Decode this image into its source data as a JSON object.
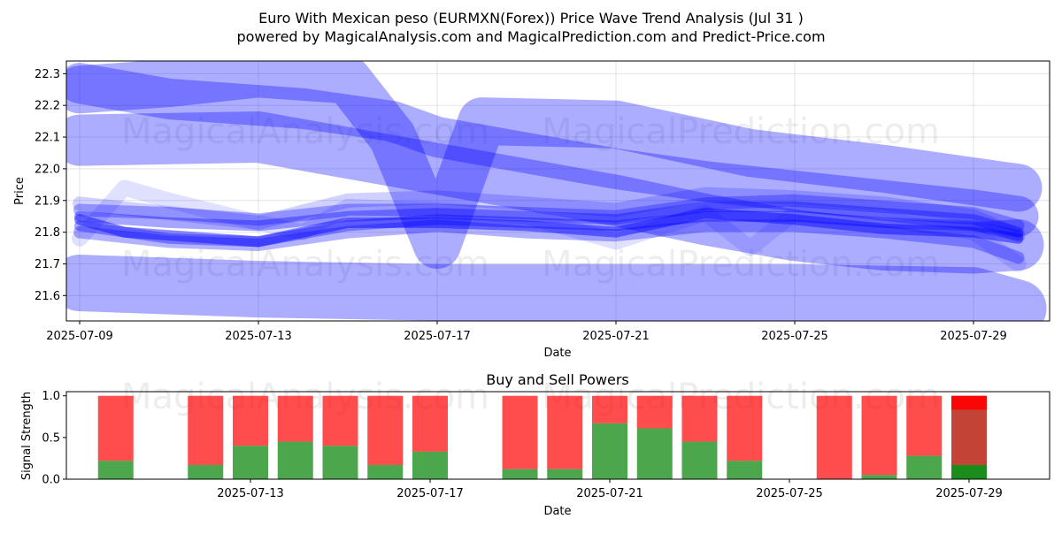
{
  "title_line1": "Euro With Mexican peso (EURMXN(Forex)) Price Wave Trend Analysis (Jul 31 )",
  "title_line2": "powered by MagicalAnalysis.com and MagicalPrediction.com and Predict-Price.com",
  "watermark_left": "MagicalAnalysis.com",
  "watermark_right": "MagicalPrediction.com",
  "colors": {
    "wave": "#0000ff",
    "buy": "#008000",
    "sell": "#ff0000",
    "highlight_sell": "#ff0000",
    "highlight_mid": "#c0392b"
  },
  "chart_data": [
    {
      "type": "line",
      "name": "price-wave-chart",
      "xlabel": "Date",
      "ylabel": "Price",
      "xlim": [
        "2025-07-09",
        "2025-07-31"
      ],
      "ylim": [
        21.52,
        22.34
      ],
      "x_ticks": [
        "2025-07-09",
        "2025-07-13",
        "2025-07-17",
        "2025-07-21",
        "2025-07-25",
        "2025-07-29"
      ],
      "y_ticks": [
        21.6,
        21.7,
        21.8,
        21.9,
        22.0,
        22.1,
        22.2,
        22.3
      ],
      "grid": true,
      "series": [
        {
          "x": [
            "2025-07-09",
            "2025-07-11",
            "2025-07-13",
            "2025-07-14",
            "2025-07-15",
            "2025-07-16",
            "2025-07-17",
            "2025-07-19",
            "2025-07-21",
            "2025-07-23",
            "2025-07-25",
            "2025-07-27",
            "2025-07-29",
            "2025-07-30"
          ],
          "y": [
            22.27,
            22.22,
            22.2,
            22.19,
            22.17,
            22.15,
            22.1,
            22.05,
            22.0,
            21.96,
            21.93,
            21.9,
            21.87,
            21.85
          ]
        },
        {
          "x": [
            "2025-07-09",
            "2025-07-11",
            "2025-07-13",
            "2025-07-15",
            "2025-07-16",
            "2025-07-17",
            "2025-07-18",
            "2025-07-21",
            "2025-07-24",
            "2025-07-27",
            "2025-07-29",
            "2025-07-30"
          ],
          "y": [
            22.25,
            22.27,
            22.3,
            22.28,
            22.1,
            21.76,
            22.15,
            22.14,
            22.05,
            22.0,
            21.96,
            21.94
          ]
        },
        {
          "x": [
            "2025-07-09",
            "2025-07-13",
            "2025-07-15",
            "2025-07-17",
            "2025-07-19",
            "2025-07-21",
            "2025-07-23",
            "2025-07-25",
            "2025-07-27",
            "2025-07-29",
            "2025-07-30"
          ],
          "y": [
            22.09,
            22.1,
            22.05,
            22.0,
            21.95,
            21.9,
            21.84,
            21.79,
            21.76,
            21.75,
            21.76
          ]
        },
        {
          "x": [
            "2025-07-09",
            "2025-07-13",
            "2025-07-17",
            "2025-07-21",
            "2025-07-25",
            "2025-07-29",
            "2025-07-30"
          ],
          "y": [
            21.64,
            21.62,
            21.61,
            21.61,
            21.61,
            21.6,
            21.56
          ]
        },
        {
          "x": [
            "2025-07-09",
            "2025-07-10",
            "2025-07-11",
            "2025-07-13",
            "2025-07-14",
            "2025-07-15",
            "2025-07-17",
            "2025-07-19",
            "2025-07-20",
            "2025-07-21",
            "2025-07-22",
            "2025-07-23",
            "2025-07-25",
            "2025-07-27",
            "2025-07-29",
            "2025-07-30"
          ],
          "y": [
            21.84,
            21.8,
            21.79,
            21.77,
            21.8,
            21.83,
            21.83,
            21.82,
            21.81,
            21.8,
            21.83,
            21.86,
            21.84,
            21.81,
            21.8,
            21.78
          ]
        },
        {
          "x": [
            "2025-07-09",
            "2025-07-11",
            "2025-07-13",
            "2025-07-15",
            "2025-07-17",
            "2025-07-19",
            "2025-07-21",
            "2025-07-23",
            "2025-07-25",
            "2025-07-27",
            "2025-07-29",
            "2025-07-30"
          ],
          "y": [
            21.85,
            21.83,
            21.82,
            21.85,
            21.86,
            21.85,
            21.84,
            21.88,
            21.88,
            21.86,
            21.84,
            21.8
          ]
        },
        {
          "x": [
            "2025-07-09",
            "2025-07-11",
            "2025-07-13",
            "2025-07-15",
            "2025-07-17",
            "2025-07-19",
            "2025-07-21",
            "2025-07-23",
            "2025-07-25",
            "2025-07-27",
            "2025-07-29",
            "2025-07-30"
          ],
          "y": [
            21.82,
            21.78,
            21.77,
            21.82,
            21.84,
            21.83,
            21.82,
            21.85,
            21.85,
            21.83,
            21.82,
            21.79
          ]
        },
        {
          "x": [
            "2025-07-09",
            "2025-07-11",
            "2025-07-13",
            "2025-07-15",
            "2025-07-17",
            "2025-07-19",
            "2025-07-21",
            "2025-07-23",
            "2025-07-25",
            "2025-07-27",
            "2025-07-29",
            "2025-07-30"
          ],
          "y": [
            21.87,
            21.86,
            21.84,
            21.87,
            21.87,
            21.86,
            21.85,
            21.89,
            21.9,
            21.88,
            21.86,
            21.82
          ]
        },
        {
          "x": [
            "2025-07-09",
            "2025-07-11",
            "2025-07-13",
            "2025-07-15",
            "2025-07-17",
            "2025-07-19",
            "2025-07-21",
            "2025-07-23",
            "2025-07-25",
            "2025-07-27",
            "2025-07-29",
            "2025-07-30"
          ],
          "y": [
            21.8,
            21.77,
            21.76,
            21.8,
            21.82,
            21.8,
            21.79,
            21.82,
            21.82,
            21.8,
            21.77,
            21.72
          ]
        },
        {
          "x": [
            "2025-07-09",
            "2025-07-10",
            "2025-07-11",
            "2025-07-13",
            "2025-07-14",
            "2025-07-15",
            "2025-07-17",
            "2025-07-19",
            "2025-07-21",
            "2025-07-23",
            "2025-07-24",
            "2025-07-25",
            "2025-07-27",
            "2025-07-29",
            "2025-07-30"
          ],
          "y": [
            21.78,
            21.94,
            21.9,
            21.83,
            21.8,
            21.88,
            21.87,
            21.85,
            21.77,
            21.86,
            21.75,
            21.86,
            21.84,
            21.8,
            21.7
          ]
        },
        {
          "x": [
            "2025-07-09",
            "2025-07-11",
            "2025-07-13",
            "2025-07-15",
            "2025-07-17",
            "2025-07-19",
            "2025-07-21",
            "2025-07-23",
            "2025-07-25",
            "2025-07-27",
            "2025-07-29",
            "2025-07-30"
          ],
          "y": [
            21.89,
            21.86,
            21.83,
            21.9,
            21.91,
            21.89,
            21.87,
            21.92,
            21.91,
            21.89,
            21.85,
            21.79
          ]
        }
      ]
    },
    {
      "type": "bar",
      "name": "buy-sell-powers-chart",
      "title": "Buy and Sell Powers",
      "xlabel": "Date",
      "ylabel": "Signal Strength",
      "ylim": [
        0,
        1.05
      ],
      "y_ticks": [
        0.0,
        0.5,
        1.0
      ],
      "x_ticks": [
        "2025-07-13",
        "2025-07-17",
        "2025-07-21",
        "2025-07-25",
        "2025-07-29"
      ],
      "categories": [
        "2025-07-10",
        "2025-07-12",
        "2025-07-13",
        "2025-07-14",
        "2025-07-15",
        "2025-07-16",
        "2025-07-17",
        "2025-07-19",
        "2025-07-20",
        "2025-07-21",
        "2025-07-22",
        "2025-07-23",
        "2025-07-24",
        "2025-07-26",
        "2025-07-27",
        "2025-07-28",
        "2025-07-29"
      ],
      "series": [
        {
          "name": "Buy",
          "values": [
            0.22,
            0.17,
            0.4,
            0.45,
            0.4,
            0.17,
            0.33,
            0.12,
            0.12,
            0.67,
            0.61,
            0.45,
            0.22,
            0.0,
            0.05,
            0.28,
            0.17
          ]
        },
        {
          "name": "Sell",
          "values": [
            0.78,
            0.83,
            0.6,
            0.55,
            0.6,
            0.83,
            0.67,
            0.88,
            0.88,
            0.33,
            0.39,
            0.55,
            0.78,
            1.0,
            0.95,
            0.72,
            0.83
          ]
        }
      ]
    }
  ]
}
